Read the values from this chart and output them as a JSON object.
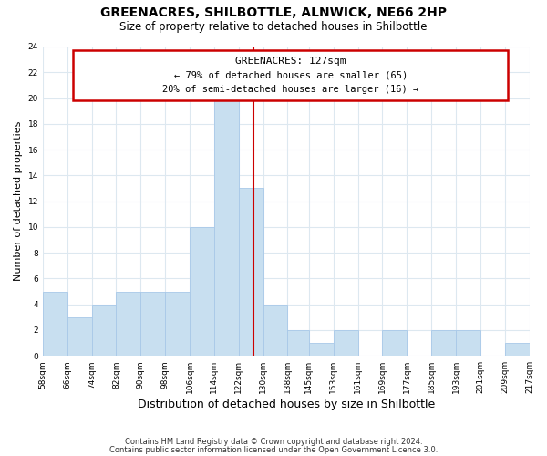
{
  "title": "GREENACRES, SHILBOTTLE, ALNWICK, NE66 2HP",
  "subtitle": "Size of property relative to detached houses in Shilbottle",
  "xlabel": "Distribution of detached houses by size in Shilbottle",
  "ylabel": "Number of detached properties",
  "bin_edges": [
    58,
    66,
    74,
    82,
    90,
    98,
    106,
    114,
    122,
    130,
    138,
    145,
    153,
    161,
    169,
    177,
    185,
    193,
    201,
    209,
    217
  ],
  "bin_labels": [
    "58sqm",
    "66sqm",
    "74sqm",
    "82sqm",
    "90sqm",
    "98sqm",
    "106sqm",
    "114sqm",
    "122sqm",
    "130sqm",
    "138sqm",
    "145sqm",
    "153sqm",
    "161sqm",
    "169sqm",
    "177sqm",
    "185sqm",
    "193sqm",
    "201sqm",
    "209sqm",
    "217sqm"
  ],
  "counts": [
    5,
    3,
    4,
    5,
    5,
    5,
    10,
    20,
    13,
    4,
    2,
    1,
    2,
    0,
    2,
    0,
    2,
    2,
    0,
    1
  ],
  "bar_color": "#c8dff0",
  "bar_edge_color": "#a8c8e8",
  "vline_x": 127,
  "vline_color": "#cc0000",
  "annotation_title": "GREENACRES: 127sqm",
  "annotation_line1": "← 79% of detached houses are smaller (65)",
  "annotation_line2": "20% of semi-detached houses are larger (16) →",
  "annotation_box_edge": "#cc0000",
  "ylim": [
    0,
    24
  ],
  "yticks": [
    0,
    2,
    4,
    6,
    8,
    10,
    12,
    14,
    16,
    18,
    20,
    22,
    24
  ],
  "footnote1": "Contains HM Land Registry data © Crown copyright and database right 2024.",
  "footnote2": "Contains public sector information licensed under the Open Government Licence 3.0.",
  "background_color": "#ffffff",
  "grid_color": "#dde8f0"
}
